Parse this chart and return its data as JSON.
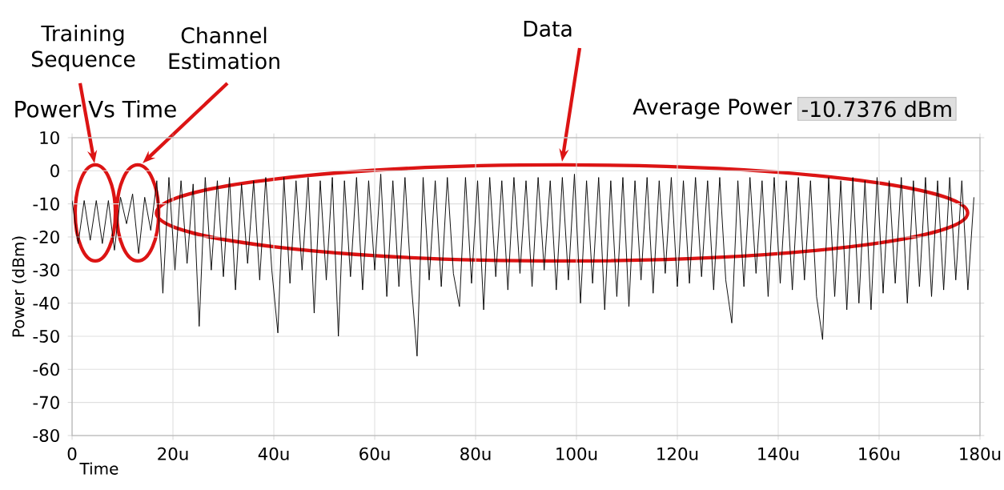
{
  "chart_data": {
    "type": "line",
    "title": "Power Vs Time",
    "xlabel": "Time",
    "ylabel": "Power (dBm)",
    "annotations": [
      "Training Sequence",
      "Channel Estimation",
      "Data",
      "Average Power",
      "-10.7376 dBm"
    ],
    "xlim": [
      0,
      180
    ],
    "ylim": [
      -80,
      10
    ],
    "xticks": [
      0,
      {
        "value": 20,
        "label": "20u"
      },
      {
        "value": 40,
        "label": "40u"
      },
      {
        "value": 60,
        "label": "60u"
      },
      {
        "value": 80,
        "label": "80u"
      },
      {
        "value": 100,
        "label": "100u"
      },
      {
        "value": 120,
        "label": "120u"
      },
      {
        "value": 140,
        "label": "140u"
      },
      {
        "value": 160,
        "label": "160u"
      },
      {
        "value": 180,
        "label": "180u"
      }
    ],
    "yticks": [
      -80,
      -70,
      -60,
      -50,
      -40,
      -30,
      -20,
      -10,
      0,
      10
    ],
    "grid": true,
    "series": [
      {
        "color": "#000000",
        "x": [
          0,
          1.2,
          2.4,
          3.6,
          4.8,
          6,
          7.2,
          8.4,
          9.6,
          10.8,
          12,
          13.2,
          14.4,
          15.6,
          16.8,
          18,
          19.2,
          20.4,
          21.6,
          22.8,
          24,
          25.2,
          26.4,
          27.6,
          28.8,
          30,
          31.2,
          32.4,
          33.6,
          34.8,
          36,
          37.2,
          38.4,
          39.6,
          40.8,
          42,
          43.2,
          44.4,
          45.6,
          46.8,
          48,
          49.2,
          50.4,
          51.6,
          52.8,
          54,
          55.2,
          56.4,
          57.6,
          58.8,
          60,
          61.2,
          62.4,
          63.6,
          64.8,
          66,
          67.2,
          68.4,
          69.6,
          70.8,
          72,
          73.2,
          74.4,
          75.6,
          76.8,
          78,
          79.2,
          80.4,
          81.6,
          82.8,
          84,
          85.2,
          86.4,
          87.6,
          88.8,
          90,
          91.2,
          92.4,
          93.6,
          94.8,
          96,
          97.2,
          98.4,
          99.6,
          100.8,
          102,
          103.2,
          104.4,
          105.6,
          106.8,
          108,
          109.2,
          110.4,
          111.6,
          112.8,
          114,
          115.2,
          116.4,
          117.6,
          118.8,
          120,
          121.2,
          122.4,
          123.6,
          124.8,
          126,
          127.2,
          128.4,
          129.6,
          130.8,
          132,
          133.2,
          134.4,
          135.6,
          136.8,
          138,
          139.2,
          140.4,
          141.6,
          142.8,
          144,
          145.2,
          146.4,
          147.6,
          148.8,
          150,
          151.2,
          152.4,
          153.6,
          154.8,
          156,
          157.2,
          158.4,
          159.6,
          160.8,
          162,
          163.2,
          164.4,
          165.6,
          166.8,
          168,
          169.2,
          170.4,
          171.6,
          172.8,
          174,
          175.2,
          176.4,
          177.6,
          178.8
        ],
        "values": [
          -9,
          -22,
          -9,
          -21,
          -9,
          -22,
          -9,
          -24,
          -8,
          -16,
          -7,
          -25,
          -8,
          -18,
          -3,
          -37,
          -2,
          -30,
          -3,
          -28,
          -4,
          -47,
          -2,
          -30,
          -3,
          -32,
          -2,
          -36,
          -4,
          -28,
          -3,
          -33,
          -2,
          -30,
          -49,
          -2,
          -34,
          -3,
          -30,
          -2,
          -43,
          -3,
          -33,
          -2,
          -50,
          -3,
          -32,
          -2,
          -36,
          -3,
          -30,
          -1,
          -38,
          -3,
          -35,
          -2,
          -33,
          -56,
          -2,
          -33,
          -3,
          -35,
          -2,
          -31,
          -41,
          -2,
          -34,
          -3,
          -42,
          -2,
          -32,
          -3,
          -36,
          -2,
          -31,
          -3,
          -35,
          -2,
          -30,
          -3,
          -36,
          -2,
          -33,
          -1,
          -40,
          -3,
          -34,
          -2,
          -42,
          -3,
          -38,
          -2,
          -41,
          -3,
          -33,
          -2,
          -37,
          -3,
          -31,
          -2,
          -35,
          -3,
          -34,
          -2,
          -32,
          -3,
          -36,
          -2,
          -33,
          -46,
          -3,
          -35,
          -2,
          -31,
          -3,
          -38,
          -2,
          -34,
          -3,
          -36,
          -2,
          -33,
          -3,
          -38,
          -51,
          -2,
          -38,
          -3,
          -42,
          -2,
          -40,
          -3,
          -42,
          -2,
          -37,
          -3,
          -34,
          -2,
          -40,
          -3,
          -35,
          -2,
          -38,
          -3,
          -36,
          -2,
          -33,
          -3,
          -36,
          -8
        ]
      }
    ]
  }
}
